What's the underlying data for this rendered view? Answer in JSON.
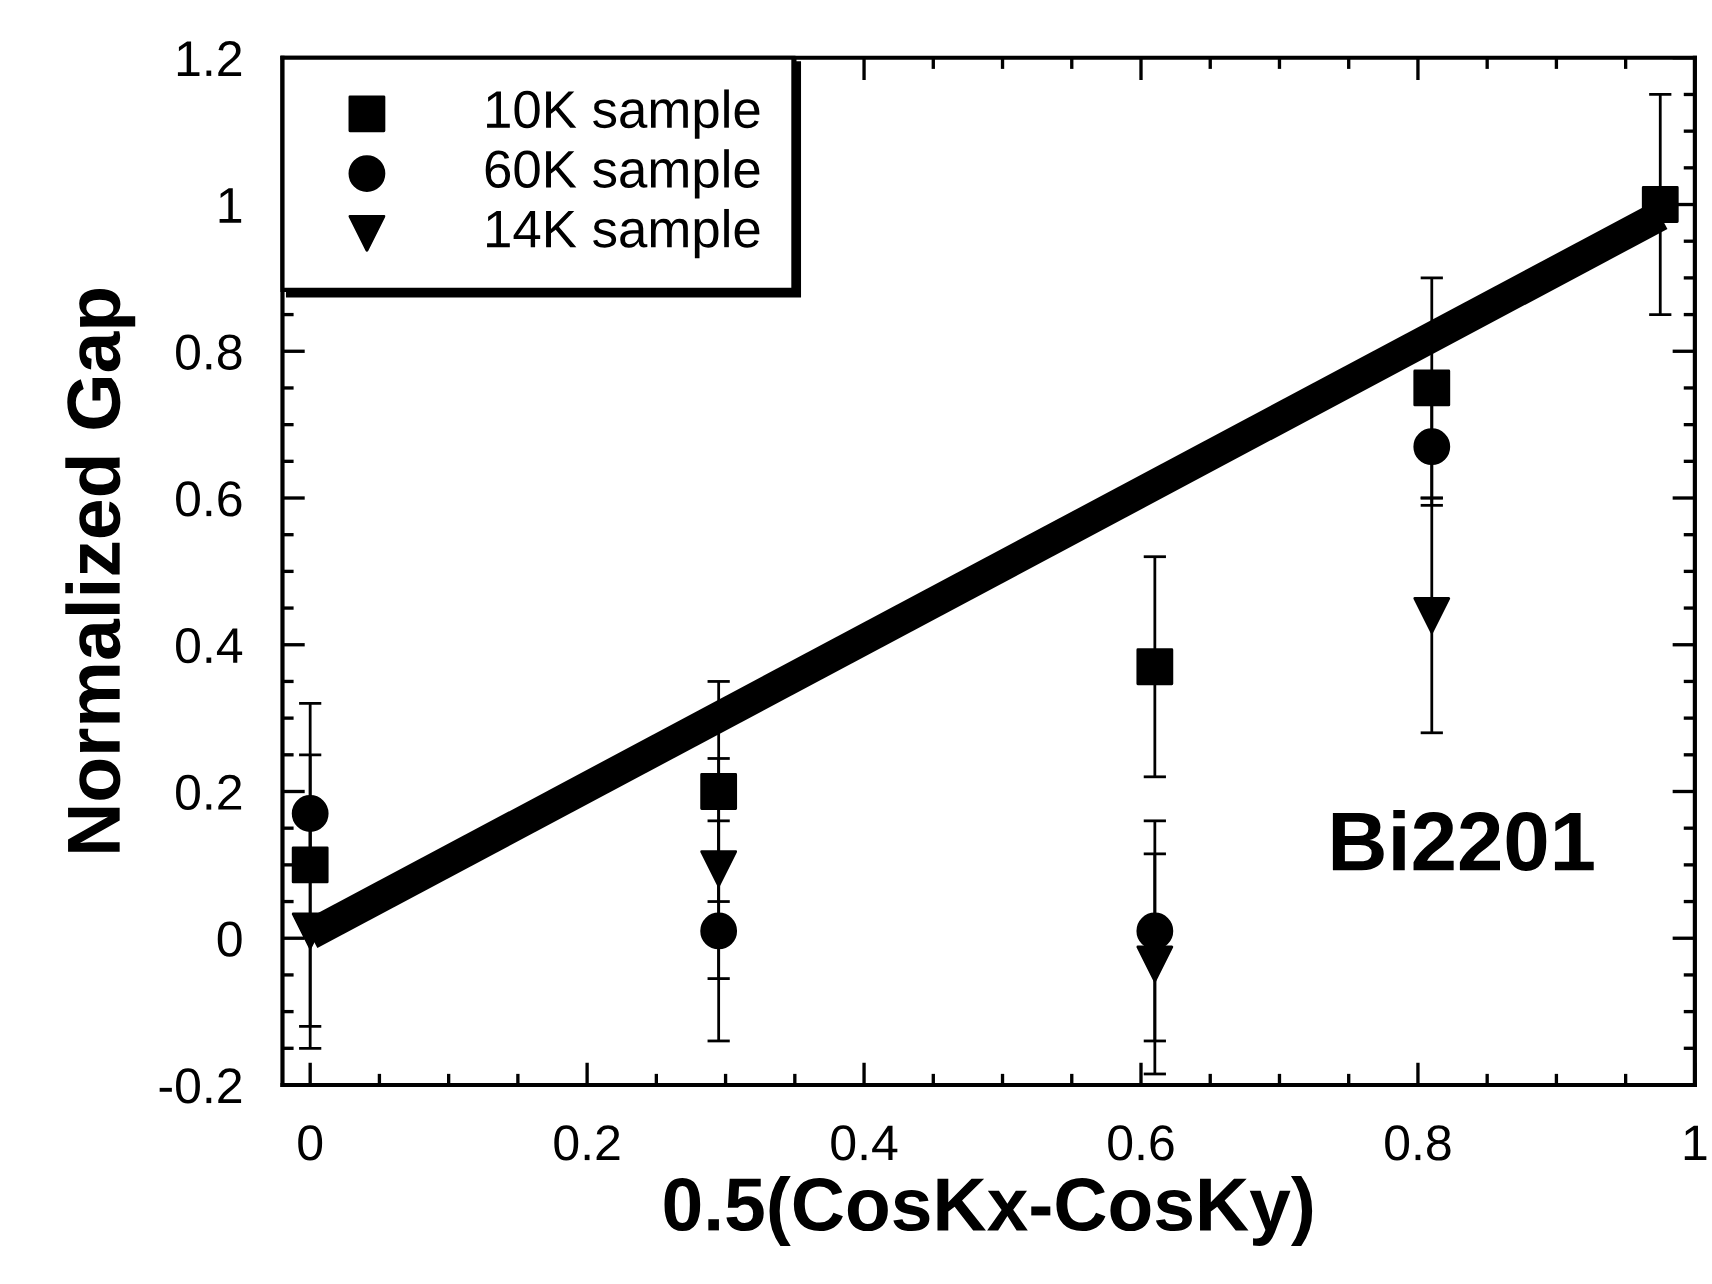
{
  "chart_data": {
    "type": "scatter",
    "xlabel": "0.5(CosKx-CosKy)",
    "ylabel": "Normalized Gap",
    "annotations": [
      "Bi2201"
    ],
    "xlim": [
      -0.02,
      1
    ],
    "xticks": [
      0,
      0.2,
      0.4,
      0.6,
      0.8,
      1
    ],
    "ylim": [
      -0.2,
      1.2
    ],
    "yticks": [
      -0.2,
      0,
      0.2,
      0.4,
      0.6,
      0.8,
      1,
      1.2
    ],
    "legend": "top left",
    "series": [
      {
        "name": "10K sample",
        "marker": "square",
        "color": "#000000",
        "x": [
          0,
          0.295,
          0.61,
          0.81,
          0.975
        ],
        "values": [
          0.1,
          0.2,
          0.37,
          0.75,
          1.0
        ],
        "errors": [
          0.22,
          0.15,
          0.15,
          0.15,
          0.15
        ]
      },
      {
        "name": "60K sample",
        "marker": "circle",
        "color": "#000000",
        "x": [
          0,
          0.295,
          0.61,
          0.81
        ],
        "values": [
          0.17,
          0.01,
          0.01,
          0.67
        ],
        "errors": [
          0.08,
          0.15,
          0.15,
          0.08
        ]
      },
      {
        "name": "14K sample",
        "marker": "triangle",
        "color": "#000000",
        "x": [
          0,
          0.295,
          0.61,
          0.81
        ],
        "values": [
          0.01,
          0.095,
          -0.035,
          0.44
        ],
        "errors": [
          0.16,
          0.15,
          0.15,
          0.16
        ]
      },
      {
        "type": "line",
        "color": "#000000",
        "x": [
          0,
          0.975
        ],
        "values": [
          0.005,
          0.985
        ]
      }
    ]
  }
}
